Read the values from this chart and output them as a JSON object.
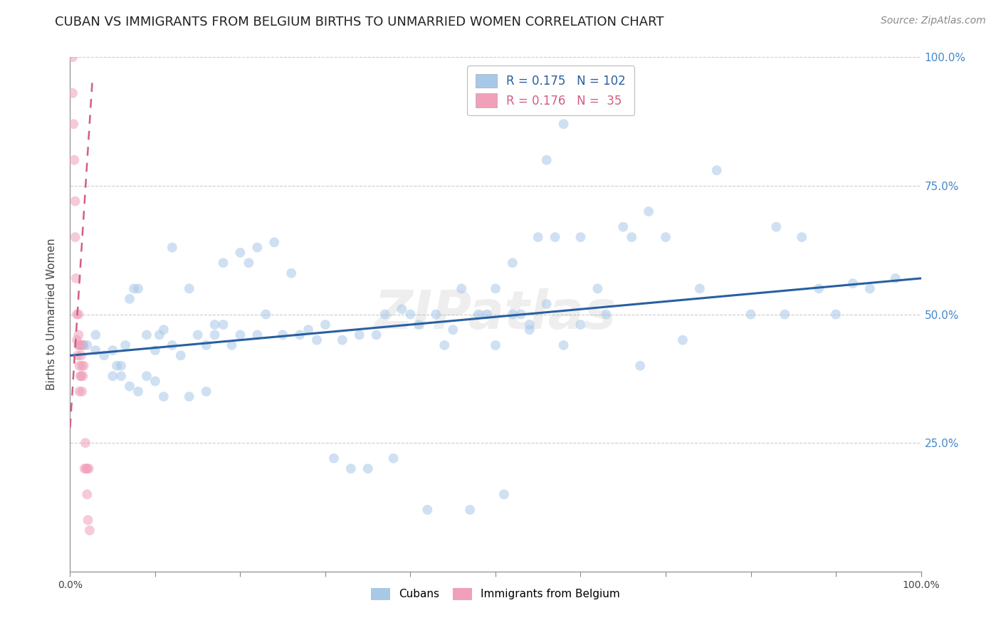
{
  "title": "CUBAN VS IMMIGRANTS FROM BELGIUM BIRTHS TO UNMARRIED WOMEN CORRELATION CHART",
  "source": "Source: ZipAtlas.com",
  "ylabel": "Births to Unmarried Women",
  "xlim": [
    0.0,
    1.0
  ],
  "ylim": [
    0.0,
    1.0
  ],
  "legend_items": [
    {
      "label": "R = 0.175   N = 102",
      "color": "#a8c4e0"
    },
    {
      "label": "R = 0.176   N =  35",
      "color": "#f0a0b8"
    }
  ],
  "cubans_x": [
    0.02,
    0.03,
    0.03,
    0.04,
    0.05,
    0.05,
    0.055,
    0.06,
    0.06,
    0.065,
    0.07,
    0.07,
    0.075,
    0.08,
    0.08,
    0.09,
    0.09,
    0.1,
    0.1,
    0.105,
    0.11,
    0.11,
    0.12,
    0.12,
    0.13,
    0.14,
    0.14,
    0.15,
    0.16,
    0.16,
    0.17,
    0.17,
    0.18,
    0.18,
    0.19,
    0.2,
    0.2,
    0.21,
    0.22,
    0.22,
    0.23,
    0.24,
    0.25,
    0.26,
    0.27,
    0.28,
    0.29,
    0.3,
    0.31,
    0.32,
    0.33,
    0.34,
    0.35,
    0.36,
    0.37,
    0.38,
    0.39,
    0.4,
    0.41,
    0.42,
    0.43,
    0.44,
    0.45,
    0.46,
    0.47,
    0.48,
    0.49,
    0.5,
    0.51,
    0.52,
    0.53,
    0.54,
    0.55,
    0.56,
    0.57,
    0.58,
    0.6,
    0.62,
    0.63,
    0.65,
    0.66,
    0.67,
    0.68,
    0.7,
    0.72,
    0.74,
    0.76,
    0.8,
    0.83,
    0.84,
    0.86,
    0.88,
    0.9,
    0.92,
    0.94,
    0.97,
    0.5,
    0.52,
    0.54,
    0.56,
    0.58,
    0.6
  ],
  "cubans_y": [
    0.44,
    0.43,
    0.46,
    0.42,
    0.38,
    0.43,
    0.4,
    0.38,
    0.4,
    0.44,
    0.36,
    0.53,
    0.55,
    0.35,
    0.55,
    0.38,
    0.46,
    0.37,
    0.43,
    0.46,
    0.34,
    0.47,
    0.44,
    0.63,
    0.42,
    0.34,
    0.55,
    0.46,
    0.35,
    0.44,
    0.46,
    0.48,
    0.48,
    0.6,
    0.44,
    0.46,
    0.62,
    0.6,
    0.63,
    0.46,
    0.5,
    0.64,
    0.46,
    0.58,
    0.46,
    0.47,
    0.45,
    0.48,
    0.22,
    0.45,
    0.2,
    0.46,
    0.2,
    0.46,
    0.5,
    0.22,
    0.51,
    0.5,
    0.48,
    0.12,
    0.5,
    0.44,
    0.47,
    0.55,
    0.12,
    0.5,
    0.5,
    0.44,
    0.15,
    0.5,
    0.5,
    0.47,
    0.65,
    0.8,
    0.65,
    0.87,
    0.65,
    0.55,
    0.5,
    0.67,
    0.65,
    0.4,
    0.7,
    0.65,
    0.45,
    0.55,
    0.78,
    0.5,
    0.67,
    0.5,
    0.65,
    0.55,
    0.5,
    0.56,
    0.55,
    0.57,
    0.55,
    0.6,
    0.48,
    0.52,
    0.44,
    0.48
  ],
  "belgium_x": [
    0.003,
    0.003,
    0.004,
    0.005,
    0.006,
    0.006,
    0.007,
    0.008,
    0.008,
    0.009,
    0.01,
    0.01,
    0.01,
    0.011,
    0.011,
    0.011,
    0.012,
    0.012,
    0.013,
    0.013,
    0.013,
    0.014,
    0.014,
    0.015,
    0.015,
    0.016,
    0.016,
    0.017,
    0.018,
    0.019,
    0.02,
    0.02,
    0.021,
    0.022,
    0.023
  ],
  "belgium_y": [
    1.0,
    0.93,
    0.87,
    0.8,
    0.72,
    0.65,
    0.57,
    0.5,
    0.45,
    0.42,
    0.5,
    0.46,
    0.44,
    0.44,
    0.4,
    0.35,
    0.44,
    0.38,
    0.42,
    0.38,
    0.44,
    0.4,
    0.35,
    0.44,
    0.38,
    0.44,
    0.4,
    0.2,
    0.25,
    0.2,
    0.2,
    0.15,
    0.1,
    0.2,
    0.08
  ],
  "blue_color": "#a8c8e8",
  "pink_color": "#f0a0b8",
  "blue_line_color": "#2860a0",
  "pink_line_color": "#d06080",
  "grid_color": "#cccccc",
  "right_axis_color": "#4488cc",
  "title_fontsize": 13,
  "source_fontsize": 10,
  "axis_label_fontsize": 11,
  "legend_fontsize": 12,
  "marker_size": 100,
  "marker_alpha": 0.55
}
